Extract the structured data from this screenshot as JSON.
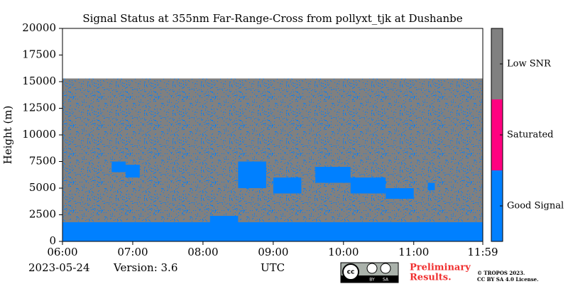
{
  "chart_data": {
    "type": "status-map",
    "title": "Signal Status at 355nm Far-Range-Cross from pollyxt_tjk at Dushanbe",
    "y_label": "Height (m)",
    "x_label": "UTC",
    "xlim": [
      6,
      11.983
    ],
    "ylim": [
      0,
      20000
    ],
    "xticks": [
      {
        "value": 6,
        "label": "06:00"
      },
      {
        "value": 7,
        "label": "07:00"
      },
      {
        "value": 8,
        "label": "08:00"
      },
      {
        "value": 9,
        "label": "09:00"
      },
      {
        "value": 10,
        "label": "10:00"
      },
      {
        "value": 11,
        "label": "11:00"
      },
      {
        "value": 11.983,
        "label": "11:59"
      }
    ],
    "yticks": [
      0,
      2500,
      5000,
      7500,
      10000,
      12500,
      15000,
      17500,
      20000
    ],
    "colorbar": {
      "categories": [
        "Good Signal",
        "Saturated",
        "Low SNR"
      ],
      "colors": [
        "#0080ff",
        "#ff0080",
        "#808080"
      ]
    },
    "regions": [
      {
        "status": 2,
        "x": [
          6,
          11.983
        ],
        "y": [
          0,
          15300
        ]
      },
      {
        "status": 0,
        "x": [
          6,
          11.983
        ],
        "y": [
          0,
          1800
        ]
      },
      {
        "status": 0,
        "x": [
          8.1,
          8.5
        ],
        "y": [
          1800,
          2400
        ]
      },
      {
        "status": 0,
        "x": [
          6.7,
          6.9
        ],
        "y": [
          6500,
          7500
        ]
      },
      {
        "status": 0,
        "x": [
          6.9,
          7.1
        ],
        "y": [
          6000,
          7200
        ]
      },
      {
        "status": 0,
        "x": [
          8.5,
          8.9
        ],
        "y": [
          5000,
          7500
        ]
      },
      {
        "status": 0,
        "x": [
          9.0,
          9.4
        ],
        "y": [
          4500,
          6000
        ]
      },
      {
        "status": 0,
        "x": [
          9.6,
          10.1
        ],
        "y": [
          5500,
          7000
        ]
      },
      {
        "status": 0,
        "x": [
          10.1,
          10.6
        ],
        "y": [
          4500,
          6000
        ]
      },
      {
        "status": 0,
        "x": [
          10.6,
          11.0
        ],
        "y": [
          4000,
          5000
        ]
      },
      {
        "status": 0,
        "x": [
          11.2,
          11.3
        ],
        "y": [
          4800,
          5500
        ]
      }
    ]
  },
  "footer": {
    "date": "2023-05-24",
    "version": "Version: 3.6",
    "notice": "Preliminary",
    "notice2": "Results.",
    "copyright": "© TROPOS 2023.",
    "license": "CC BY SA 4.0 License."
  }
}
